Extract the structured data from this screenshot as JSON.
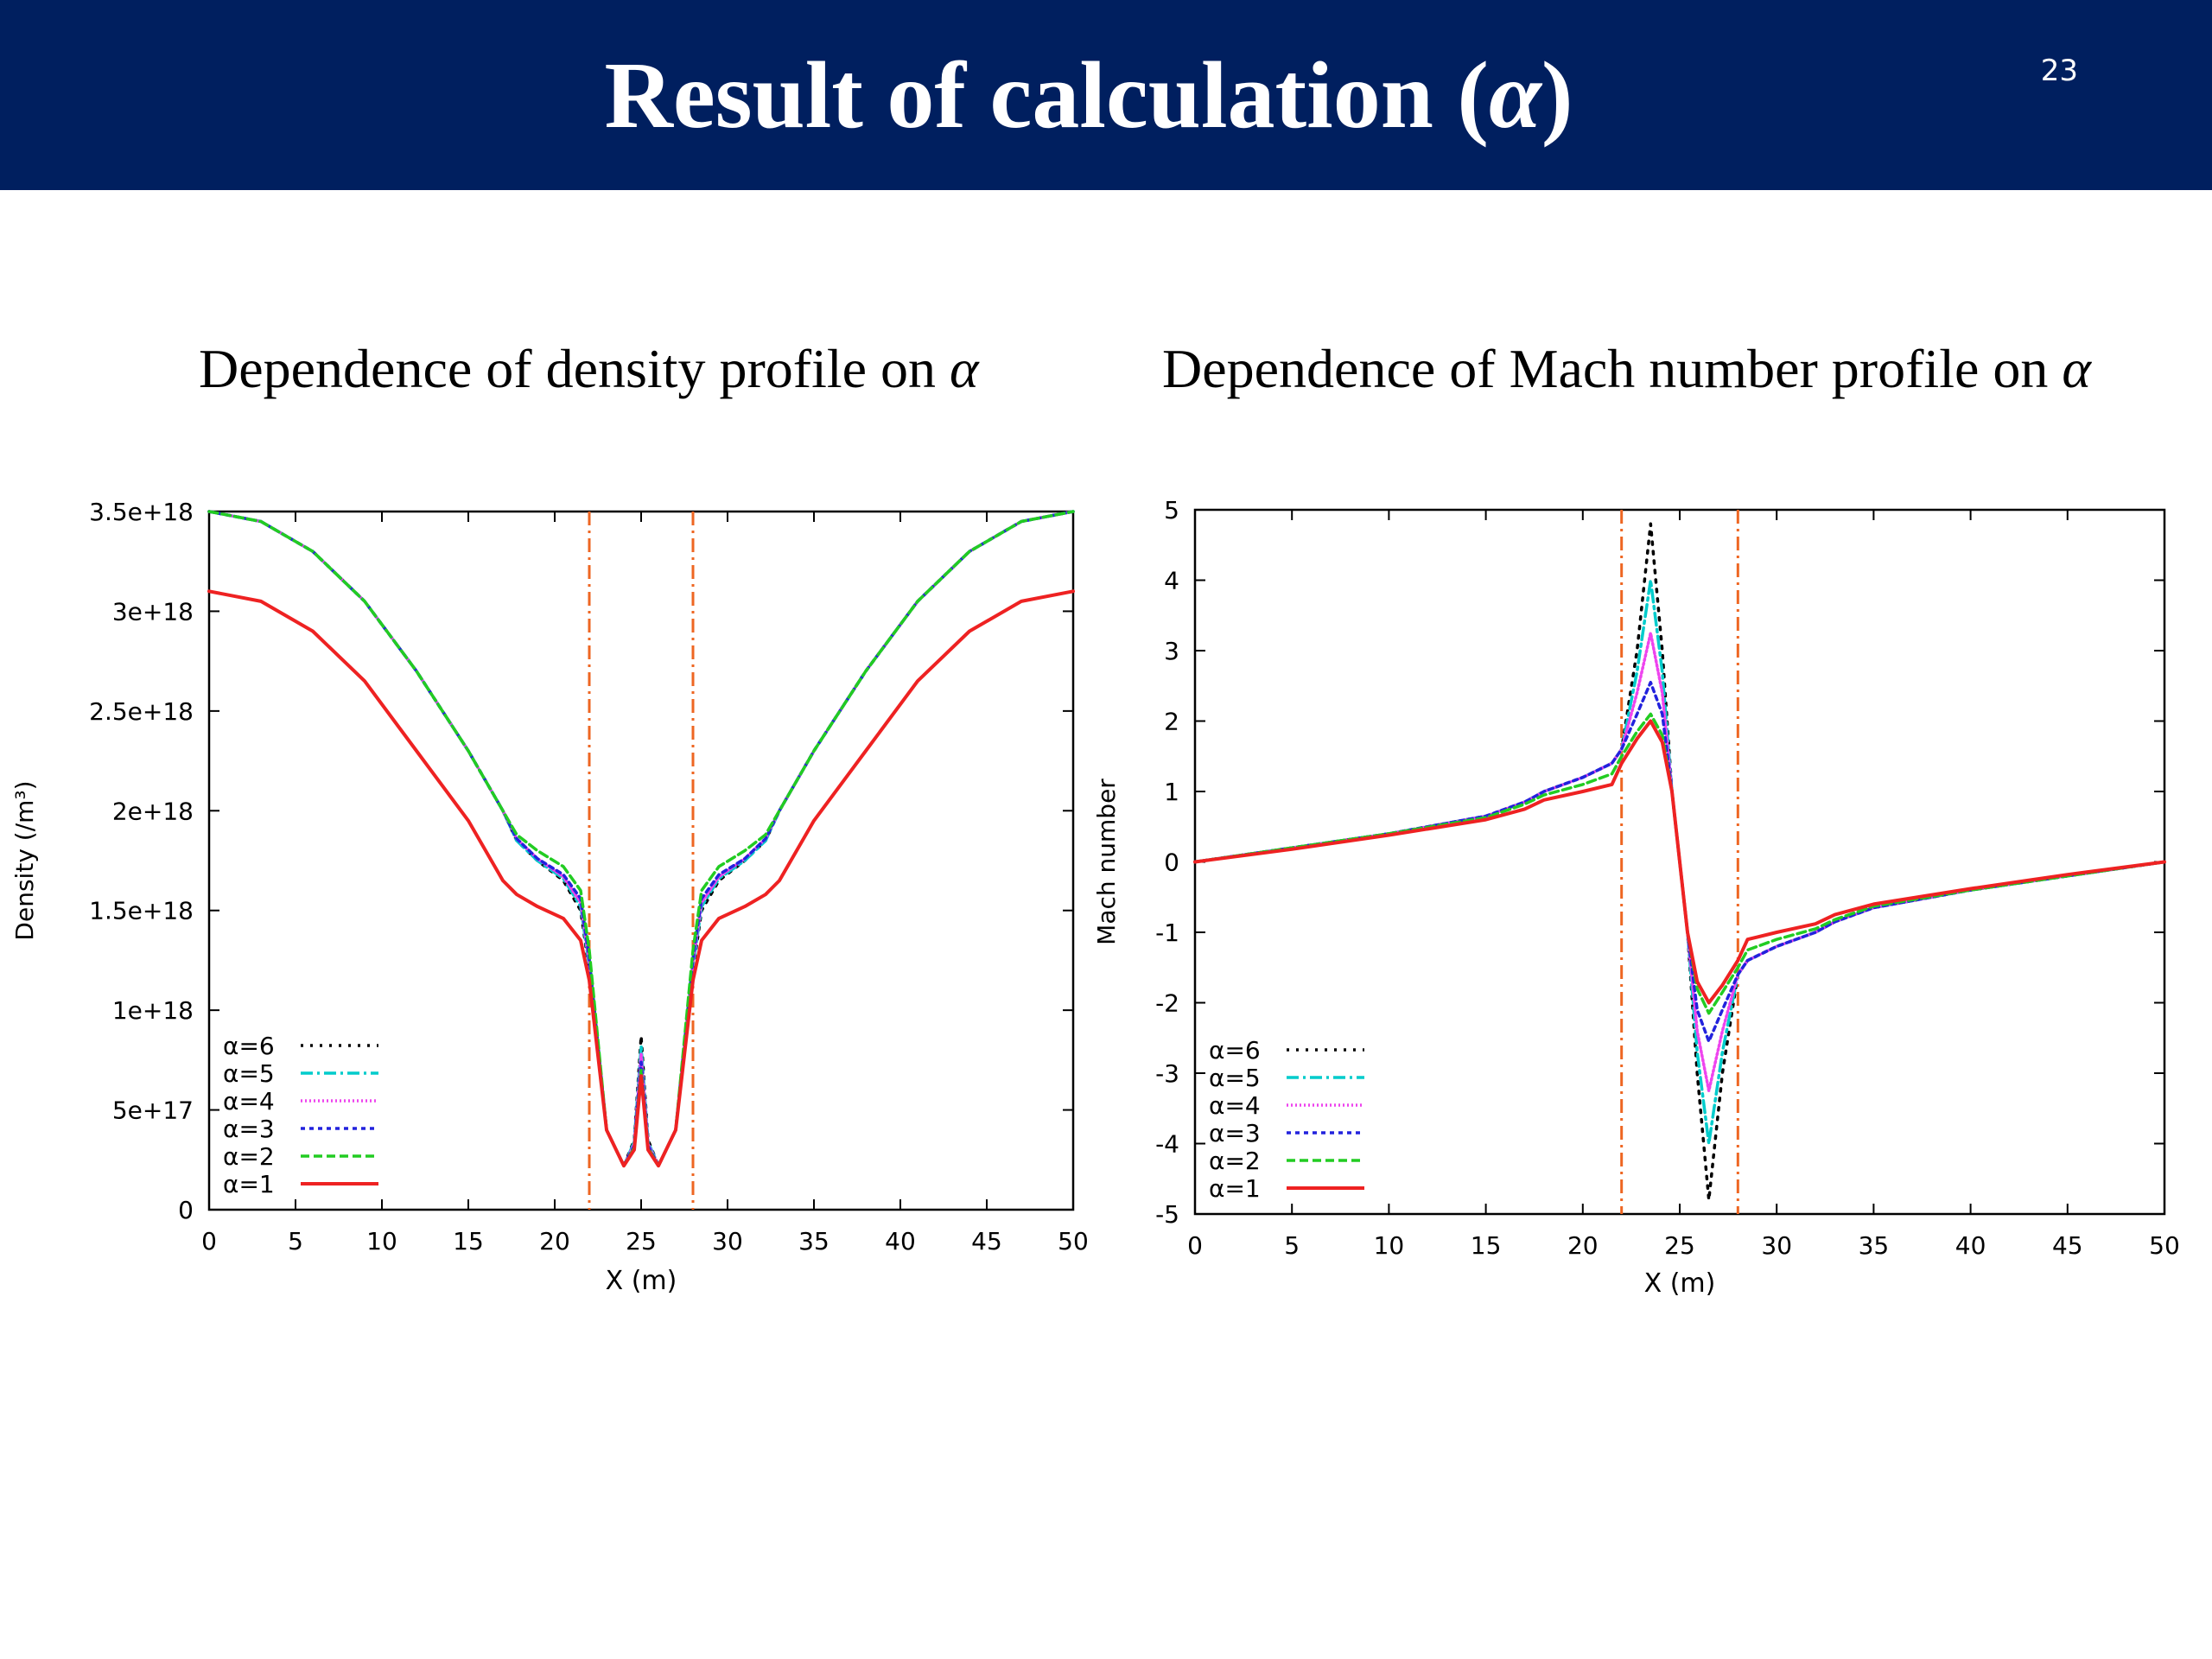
{
  "slide": {
    "title_text": "Result of calculation (",
    "title_greek": "α",
    "title_close": ")",
    "page_number": "23",
    "captions": [
      {
        "text": "Dependence of density profile on ",
        "greek": "α"
      },
      {
        "text": "Dependence of Mach number profile on ",
        "greek": "α"
      }
    ]
  },
  "chart_data": [
    {
      "type": "line",
      "title": "Dependence of density profile on α",
      "xlabel": "X (m)",
      "ylabel": "Density (/m³)",
      "xlim": [
        0,
        50
      ],
      "ylim": [
        0,
        3.5e+18
      ],
      "xticks": [
        0,
        5,
        10,
        15,
        20,
        25,
        30,
        35,
        40,
        45,
        50
      ],
      "xtick_labels": [
        "0",
        "5",
        "10",
        "15",
        "20",
        "25",
        "30",
        "35",
        "40",
        "45",
        "50"
      ],
      "yticks": [
        0,
        5e+17,
        1e+18,
        1.5e+18,
        2e+18,
        2.5e+18,
        3e+18,
        3.5e+18
      ],
      "ytick_labels": [
        "0",
        "5e+17",
        "1e+18",
        "1.5e+18",
        "2e+18",
        "2.5e+18",
        "3e+18",
        "3.5e+18"
      ],
      "vlines": [
        22,
        28
      ],
      "legend": "bottom-left",
      "series": [
        {
          "name": "α=6",
          "color": "#000000",
          "dash": "3,8",
          "x": [
            0,
            3,
            6,
            9,
            12,
            15,
            17,
            17.8,
            19,
            20.5,
            21.5,
            22,
            23,
            24,
            24.6,
            25,
            25.4,
            26,
            27,
            28,
            28.5,
            29.5,
            31,
            32.2,
            33,
            35,
            38,
            41,
            44,
            47,
            50
          ],
          "y": [
            3.5e+18,
            3.45e+18,
            3.3e+18,
            3.05e+18,
            2.7e+18,
            2.3e+18,
            2e+18,
            1.85e+18,
            1.75e+18,
            1.65e+18,
            1.5e+18,
            1.2e+18,
            4e+17,
            2.2e+17,
            3.5e+17,
            8.7e+17,
            3.5e+17,
            2.2e+17,
            4e+17,
            1.2e+18,
            1.5e+18,
            1.65e+18,
            1.75e+18,
            1.85e+18,
            2e+18,
            2.3e+18,
            2.7e+18,
            3.05e+18,
            3.3e+18,
            3.45e+18,
            3.5e+18
          ]
        },
        {
          "name": "α=5",
          "color": "#00cccc",
          "dash": "14,5,3,5",
          "x": [
            0,
            3,
            6,
            9,
            12,
            15,
            17,
            17.8,
            19,
            20.5,
            21.5,
            22,
            23,
            24,
            24.6,
            25,
            25.4,
            26,
            27,
            28,
            28.5,
            29.5,
            31,
            32.2,
            33,
            35,
            38,
            41,
            44,
            47,
            50
          ],
          "y": [
            3.5e+18,
            3.45e+18,
            3.3e+18,
            3.05e+18,
            2.7e+18,
            2.3e+18,
            2e+18,
            1.85e+18,
            1.75e+18,
            1.66e+18,
            1.52e+18,
            1.22e+18,
            4e+17,
            2.2e+17,
            3.4e+17,
            8.2e+17,
            3.4e+17,
            2.2e+17,
            4e+17,
            1.22e+18,
            1.52e+18,
            1.66e+18,
            1.75e+18,
            1.85e+18,
            2e+18,
            2.3e+18,
            2.7e+18,
            3.05e+18,
            3.3e+18,
            3.45e+18,
            3.5e+18
          ]
        },
        {
          "name": "α=4",
          "color": "#ee44ee",
          "dash": "2,3",
          "x": [
            0,
            3,
            6,
            9,
            12,
            15,
            17,
            17.8,
            19,
            20.5,
            21.5,
            22,
            23,
            24,
            24.6,
            25,
            25.4,
            26,
            27,
            28,
            28.5,
            29.5,
            31,
            32.2,
            33,
            35,
            38,
            41,
            44,
            47,
            50
          ],
          "y": [
            3.5e+18,
            3.45e+18,
            3.3e+18,
            3.05e+18,
            2.7e+18,
            2.3e+18,
            2e+18,
            1.86e+18,
            1.76e+18,
            1.67e+18,
            1.54e+18,
            1.24e+18,
            4e+17,
            2.2e+17,
            3.3e+17,
            7.8e+17,
            3.3e+17,
            2.2e+17,
            4e+17,
            1.24e+18,
            1.54e+18,
            1.67e+18,
            1.76e+18,
            1.86e+18,
            2e+18,
            2.3e+18,
            2.7e+18,
            3.05e+18,
            3.3e+18,
            3.45e+18,
            3.5e+18
          ]
        },
        {
          "name": "α=3",
          "color": "#2222dd",
          "dash": "5,5",
          "x": [
            0,
            3,
            6,
            9,
            12,
            15,
            17,
            17.8,
            19,
            20.5,
            21.5,
            22,
            23,
            24,
            24.6,
            25,
            25.4,
            26,
            27,
            28,
            28.5,
            29.5,
            31,
            32.2,
            33,
            35,
            38,
            41,
            44,
            47,
            50
          ],
          "y": [
            3.5e+18,
            3.45e+18,
            3.3e+18,
            3.05e+18,
            2.7e+18,
            2.3e+18,
            2e+18,
            1.86e+18,
            1.76e+18,
            1.68e+18,
            1.56e+18,
            1.26e+18,
            4e+17,
            2.2e+17,
            3.2e+17,
            7.4e+17,
            3.2e+17,
            2.2e+17,
            4e+17,
            1.26e+18,
            1.56e+18,
            1.68e+18,
            1.76e+18,
            1.86e+18,
            2e+18,
            2.3e+18,
            2.7e+18,
            3.05e+18,
            3.3e+18,
            3.45e+18,
            3.5e+18
          ]
        },
        {
          "name": "α=2",
          "color": "#22cc22",
          "dash": "10,5",
          "x": [
            0,
            3,
            6,
            9,
            12,
            15,
            17,
            17.8,
            19,
            20.5,
            21.5,
            22,
            23,
            24,
            24.6,
            25,
            25.4,
            26,
            27,
            28,
            28.5,
            29.5,
            31,
            32.2,
            33,
            35,
            38,
            41,
            44,
            47,
            50
          ],
          "y": [
            3.5e+18,
            3.45e+18,
            3.3e+18,
            3.05e+18,
            2.7e+18,
            2.3e+18,
            2e+18,
            1.88e+18,
            1.8e+18,
            1.72e+18,
            1.6e+18,
            1.3e+18,
            4e+17,
            2.2e+17,
            3.1e+17,
            7e+17,
            3.1e+17,
            2.2e+17,
            4e+17,
            1.3e+18,
            1.6e+18,
            1.72e+18,
            1.8e+18,
            1.88e+18,
            2e+18,
            2.3e+18,
            2.7e+18,
            3.05e+18,
            3.3e+18,
            3.45e+18,
            3.5e+18
          ]
        },
        {
          "name": "α=1",
          "color": "#ee2222",
          "dash": "",
          "x": [
            0,
            3,
            6,
            9,
            12,
            15,
            17,
            17.8,
            19,
            20.5,
            21.5,
            22,
            23,
            24,
            24.6,
            25,
            25.4,
            26,
            27,
            28,
            28.5,
            29.5,
            31,
            32.2,
            33,
            35,
            38,
            41,
            44,
            47,
            50
          ],
          "y": [
            3.1e+18,
            3.05e+18,
            2.9e+18,
            2.65e+18,
            2.3e+18,
            1.95e+18,
            1.65e+18,
            1.58e+18,
            1.52e+18,
            1.46e+18,
            1.35e+18,
            1.15e+18,
            4e+17,
            2.2e+17,
            3e+17,
            6.7e+17,
            3e+17,
            2.2e+17,
            4e+17,
            1.15e+18,
            1.35e+18,
            1.46e+18,
            1.52e+18,
            1.58e+18,
            1.65e+18,
            1.95e+18,
            2.3e+18,
            2.65e+18,
            2.9e+18,
            3.05e+18,
            3.1e+18
          ]
        }
      ]
    },
    {
      "type": "line",
      "title": "Dependence of Mach number profile on α",
      "xlabel": "X (m)",
      "ylabel": "Mach number",
      "xlim": [
        0,
        50
      ],
      "ylim": [
        -5,
        5
      ],
      "xticks": [
        0,
        5,
        10,
        15,
        20,
        25,
        30,
        35,
        40,
        45,
        50
      ],
      "xtick_labels": [
        "0",
        "5",
        "10",
        "15",
        "20",
        "25",
        "30",
        "35",
        "40",
        "45",
        "50"
      ],
      "yticks": [
        -5,
        -4,
        -3,
        -2,
        -1,
        0,
        1,
        2,
        3,
        4,
        5
      ],
      "ytick_labels": [
        "-5",
        "-4",
        "-3",
        "-2",
        "-1",
        "0",
        "1",
        "2",
        "3",
        "4",
        "5"
      ],
      "vlines": [
        22,
        28
      ],
      "legend": "bottom-left",
      "series": [
        {
          "name": "α=6",
          "color": "#000000",
          "dash": "3,8",
          "x": [
            0,
            5,
            10,
            15,
            17,
            18,
            20,
            21.5,
            22,
            22.8,
            23.5,
            24.1,
            24.6,
            25,
            25.4,
            25.9,
            26.5,
            27.2,
            28,
            28.5,
            30,
            32,
            33,
            35,
            40,
            45,
            50
          ],
          "y": [
            0,
            0.2,
            0.4,
            0.65,
            0.85,
            1.0,
            1.2,
            1.4,
            1.6,
            3.0,
            4.8,
            3.0,
            1.0,
            0,
            -1.0,
            -3.0,
            -4.8,
            -3.0,
            -1.6,
            -1.4,
            -1.2,
            -1.0,
            -0.85,
            -0.65,
            -0.4,
            -0.2,
            0
          ]
        },
        {
          "name": "α=5",
          "color": "#00cccc",
          "dash": "14,5,3,5",
          "x": [
            0,
            5,
            10,
            15,
            17,
            18,
            20,
            21.5,
            22,
            22.8,
            23.5,
            24.1,
            24.6,
            25,
            25.4,
            25.9,
            26.5,
            27.2,
            28,
            28.5,
            30,
            32,
            33,
            35,
            40,
            45,
            50
          ],
          "y": [
            0,
            0.2,
            0.4,
            0.65,
            0.85,
            1.0,
            1.2,
            1.4,
            1.6,
            2.7,
            4.0,
            2.7,
            1.0,
            0,
            -1.0,
            -2.7,
            -4.0,
            -2.7,
            -1.6,
            -1.4,
            -1.2,
            -1.0,
            -0.85,
            -0.65,
            -0.4,
            -0.2,
            0
          ]
        },
        {
          "name": "α=4",
          "color": "#ee44ee",
          "dash": "2,3",
          "x": [
            0,
            5,
            10,
            15,
            17,
            18,
            20,
            21.5,
            22,
            22.8,
            23.5,
            24.1,
            24.6,
            25,
            25.4,
            25.9,
            26.5,
            27.2,
            28,
            28.5,
            30,
            32,
            33,
            35,
            40,
            45,
            50
          ],
          "y": [
            0,
            0.2,
            0.4,
            0.65,
            0.85,
            1.0,
            1.2,
            1.4,
            1.6,
            2.4,
            3.25,
            2.4,
            1.0,
            0,
            -1.0,
            -2.4,
            -3.25,
            -2.4,
            -1.6,
            -1.4,
            -1.2,
            -1.0,
            -0.85,
            -0.65,
            -0.4,
            -0.2,
            0
          ]
        },
        {
          "name": "α=3",
          "color": "#2222dd",
          "dash": "5,5",
          "x": [
            0,
            5,
            10,
            15,
            17,
            18,
            20,
            21.5,
            22,
            22.8,
            23.5,
            24.1,
            24.6,
            25,
            25.4,
            25.9,
            26.5,
            27.2,
            28,
            28.5,
            30,
            32,
            33,
            35,
            40,
            45,
            50
          ],
          "y": [
            0,
            0.2,
            0.4,
            0.65,
            0.85,
            1.0,
            1.2,
            1.4,
            1.6,
            2.1,
            2.55,
            2.1,
            1.0,
            0,
            -1.0,
            -2.1,
            -2.55,
            -2.1,
            -1.6,
            -1.4,
            -1.2,
            -1.0,
            -0.85,
            -0.65,
            -0.4,
            -0.2,
            0
          ]
        },
        {
          "name": "α=2",
          "color": "#22cc22",
          "dash": "10,5",
          "x": [
            0,
            5,
            10,
            15,
            17,
            18,
            20,
            21.5,
            22,
            22.8,
            23.5,
            24.1,
            24.6,
            25,
            25.4,
            25.9,
            26.5,
            27.2,
            28,
            28.5,
            30,
            32,
            33,
            35,
            40,
            45,
            50
          ],
          "y": [
            0,
            0.2,
            0.4,
            0.63,
            0.82,
            0.95,
            1.1,
            1.25,
            1.5,
            1.85,
            2.1,
            1.8,
            1.0,
            0,
            -1.0,
            -1.8,
            -2.15,
            -1.85,
            -1.5,
            -1.25,
            -1.1,
            -0.95,
            -0.82,
            -0.63,
            -0.4,
            -0.2,
            0
          ]
        },
        {
          "name": "α=1",
          "color": "#ee2222",
          "dash": "",
          "x": [
            0,
            5,
            10,
            15,
            17,
            18,
            20,
            21.5,
            22,
            22.8,
            23.5,
            24.1,
            24.6,
            25,
            25.4,
            25.9,
            26.5,
            27.2,
            28,
            28.5,
            30,
            32,
            33,
            35,
            40,
            45,
            50
          ],
          "y": [
            0,
            0.18,
            0.38,
            0.6,
            0.75,
            0.88,
            1.0,
            1.1,
            1.4,
            1.75,
            2.0,
            1.7,
            1.0,
            0,
            -1.0,
            -1.7,
            -2.0,
            -1.75,
            -1.4,
            -1.1,
            -1.0,
            -0.88,
            -0.75,
            -0.6,
            -0.38,
            -0.18,
            0
          ]
        }
      ]
    }
  ]
}
